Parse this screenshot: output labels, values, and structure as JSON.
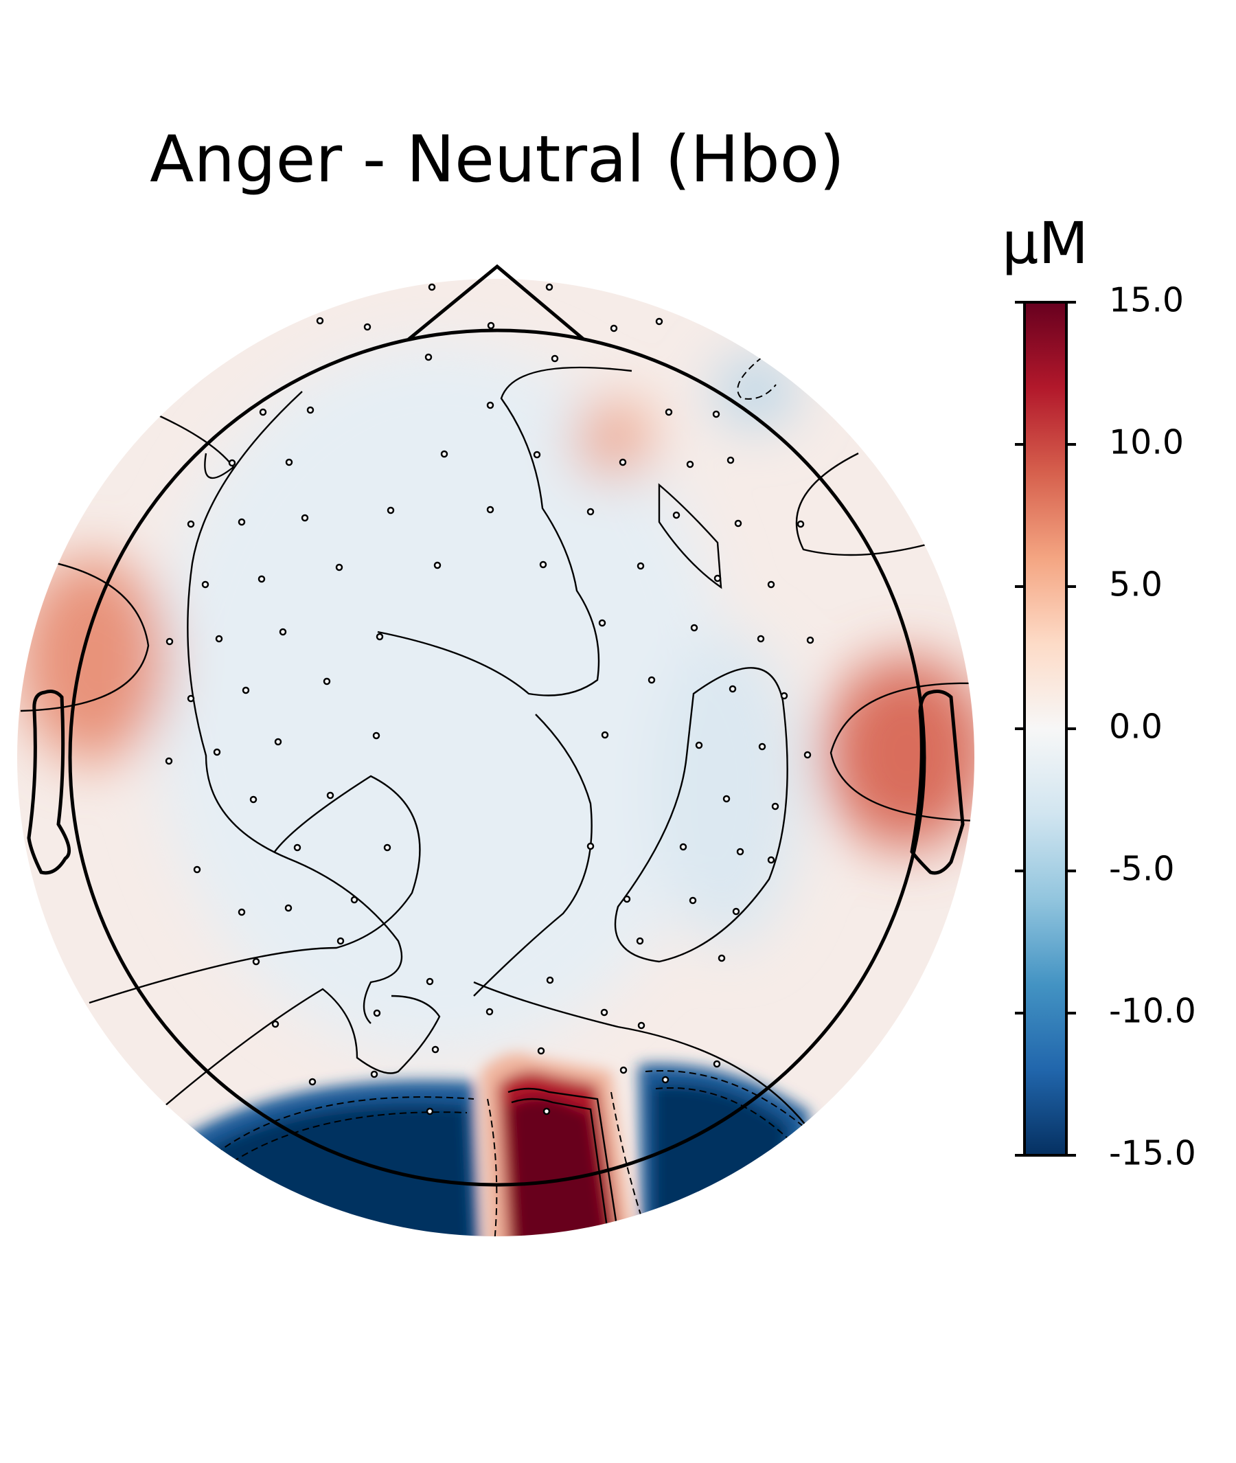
{
  "chart_data": {
    "type": "topomap",
    "title": "Anger - Neutral (Hbo)",
    "colorbar_label": "µM",
    "clim": [
      -15,
      15
    ],
    "cticks": [
      {
        "value": 15,
        "label": "15.0"
      },
      {
        "value": 10,
        "label": "10.0"
      },
      {
        "value": 5,
        "label": "5.0"
      },
      {
        "value": 0,
        "label": "0.0"
      },
      {
        "value": -5,
        "label": "-5.0"
      },
      {
        "value": -10,
        "label": "-10.0"
      },
      {
        "value": -15,
        "label": "-15.0"
      }
    ],
    "colormap": [
      "#053061",
      "#2166ac",
      "#4393c3",
      "#92c5de",
      "#d1e5f0",
      "#f7f7f7",
      "#fddbc7",
      "#f4a582",
      "#d6604d",
      "#b2182b",
      "#67001f"
    ]
  }
}
